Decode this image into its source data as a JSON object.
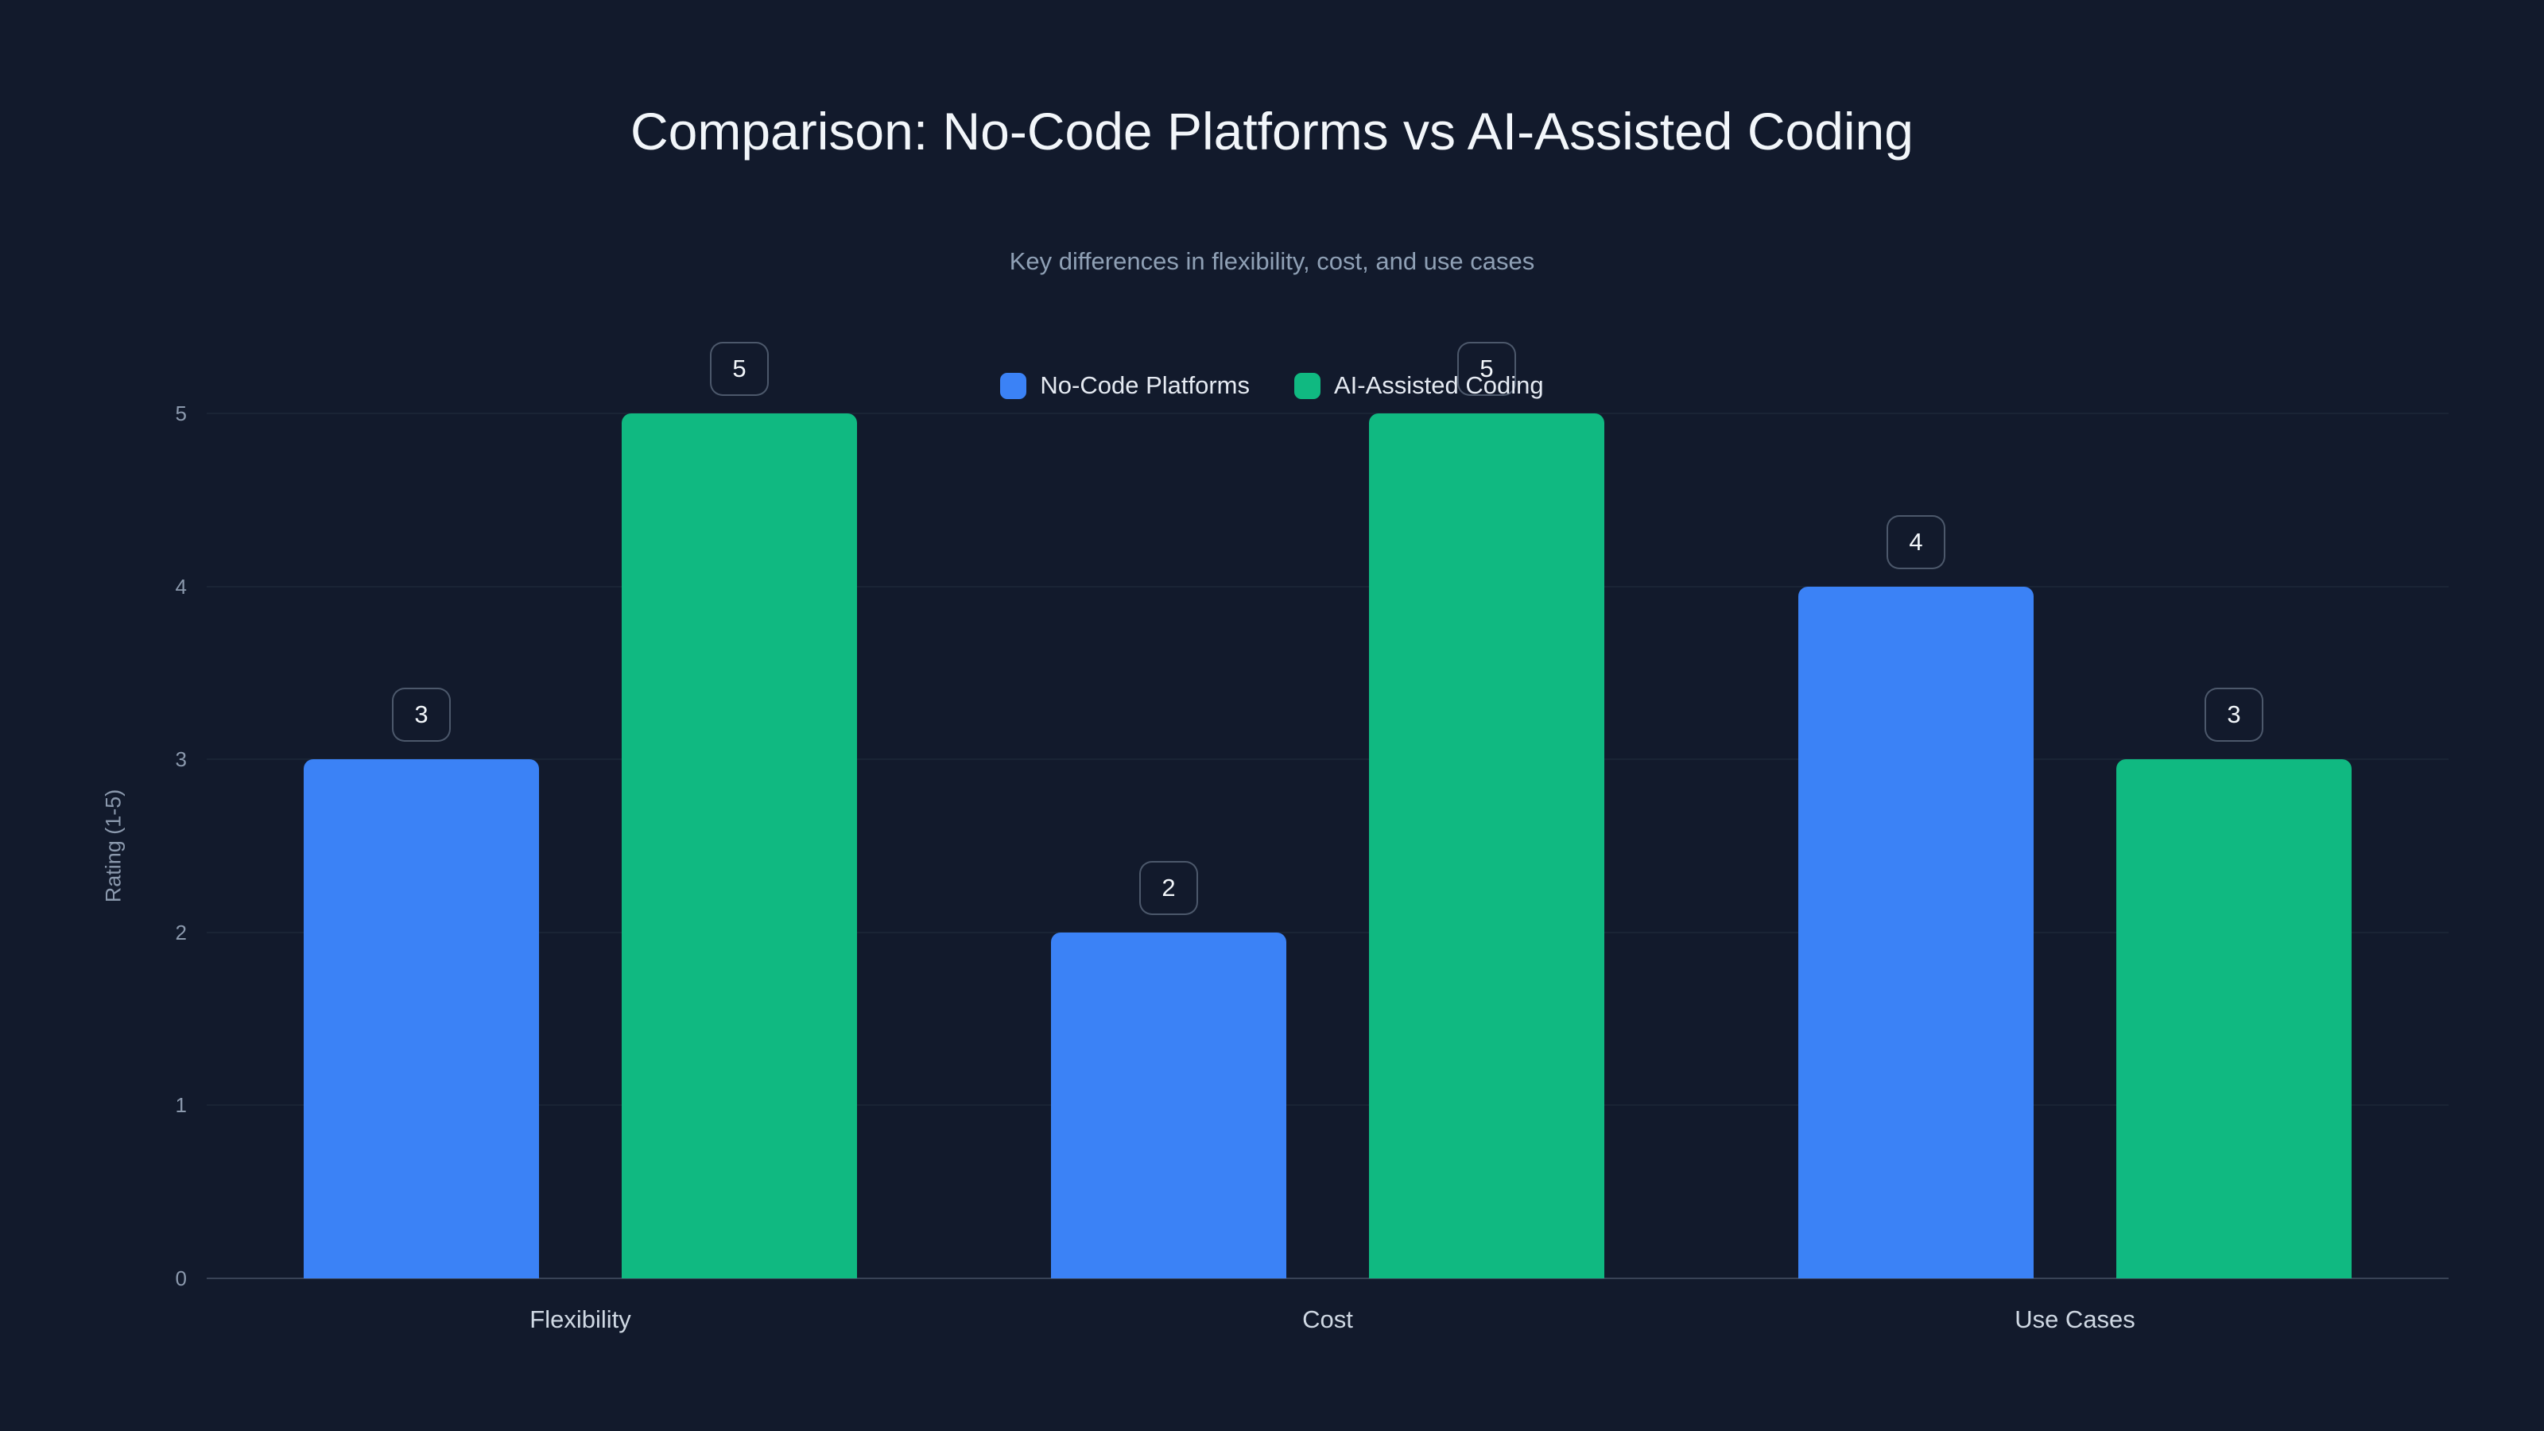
{
  "page": {
    "title": "Comparison: No-Code Platforms vs AI-Assisted Coding",
    "subtitle": "Key differences in flexibility, cost, and use cases"
  },
  "chart_data": {
    "type": "bar",
    "title": "Comparison: No-Code Platforms vs AI-Assisted Coding",
    "subtitle": "Key differences in flexibility, cost, and use cases",
    "categories": [
      "Flexibility",
      "Cost",
      "Use Cases"
    ],
    "series": [
      {
        "name": "No-Code Platforms",
        "color": "#3b82f6",
        "values": [
          3,
          2,
          4
        ]
      },
      {
        "name": "AI-Assisted Coding",
        "color": "#10b981",
        "values": [
          5,
          5,
          3
        ]
      }
    ],
    "ylabel": "Rating (1-5)",
    "ylim": [
      0,
      5
    ],
    "yticks": [
      0,
      1,
      2,
      3,
      4,
      5
    ],
    "grid": true,
    "legend_position": "top-center",
    "value_labels": "badges above bars",
    "background_color": "#121a2c"
  }
}
